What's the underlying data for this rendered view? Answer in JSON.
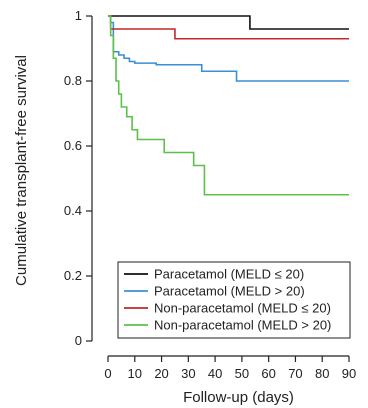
{
  "chart_data": {
    "type": "line",
    "step": true,
    "xlabel": "Follow-up (days)",
    "ylabel": "Cumulative transplant-free survival",
    "xlim": [
      0,
      90
    ],
    "ylim": [
      0,
      1
    ],
    "xticks": [
      0,
      10,
      20,
      30,
      40,
      50,
      60,
      70,
      80,
      90
    ],
    "yticks": [
      0,
      0.2,
      0.4,
      0.6,
      0.8,
      1
    ],
    "ytick_labels": [
      "0",
      "0.2",
      "0.4",
      "0.6",
      "0.8",
      "1"
    ],
    "grid": false,
    "legend_position": "bottom-left",
    "series": [
      {
        "name": "Paracetamol (MELD ≤ 20)",
        "color": "#111111",
        "x": [
          0,
          53,
          90
        ],
        "y": [
          1.0,
          0.96,
          0.96
        ]
      },
      {
        "name": "Paracetamol (MELD > 20)",
        "color": "#3b8fd6",
        "x": [
          0,
          1,
          2,
          4,
          6,
          8,
          10,
          18,
          35,
          48,
          90
        ],
        "y": [
          1.0,
          0.98,
          0.89,
          0.88,
          0.87,
          0.86,
          0.855,
          0.85,
          0.83,
          0.8,
          0.8
        ],
        "last_x": 90
      },
      {
        "name": "Non-paracetamol (MELD ≤ 20)",
        "color": "#c0282c",
        "x": [
          0,
          1,
          25,
          90
        ],
        "y": [
          1.0,
          0.96,
          0.93,
          0.93
        ]
      },
      {
        "name": "Non-paracetamol (MELD > 20)",
        "color": "#5cc04a",
        "x": [
          0,
          1,
          2,
          3,
          4,
          5,
          7,
          9,
          11,
          15,
          21,
          32,
          36,
          90
        ],
        "y": [
          1.0,
          0.94,
          0.87,
          0.8,
          0.76,
          0.72,
          0.69,
          0.65,
          0.62,
          0.62,
          0.58,
          0.54,
          0.45,
          0.45
        ]
      }
    ]
  }
}
